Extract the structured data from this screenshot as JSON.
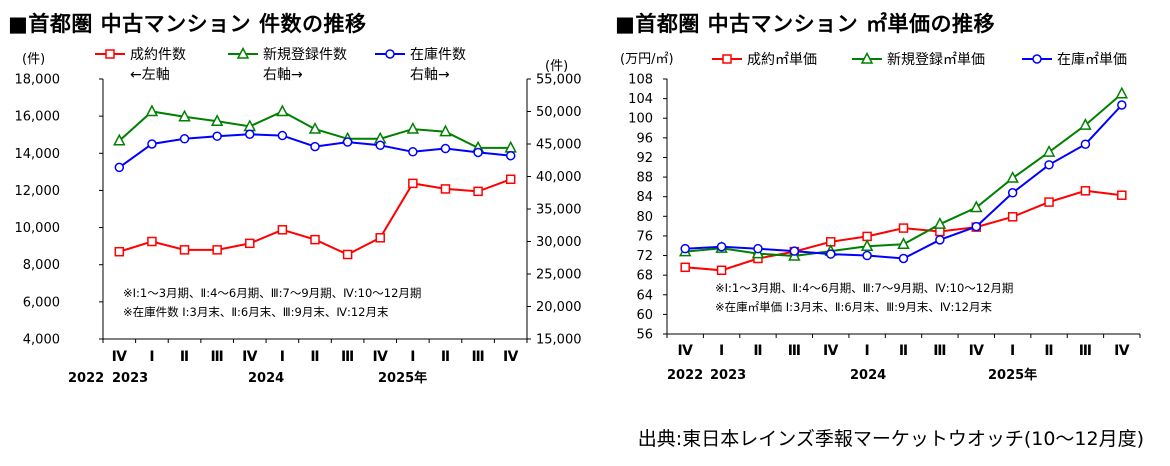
{
  "source": "出典:東日本レインズ季報マーケットウオッチ(10～12月度)",
  "chart_data": [
    {
      "type": "line",
      "title": "■首都圏 中古マンション 件数の推移",
      "left_unit": "(件)",
      "right_unit": "(件)",
      "categories": [
        "Ⅳ",
        "Ⅰ",
        "Ⅱ",
        "Ⅲ",
        "Ⅳ",
        "Ⅰ",
        "Ⅱ",
        "Ⅲ",
        "Ⅳ",
        "Ⅰ",
        "Ⅱ",
        "Ⅲ",
        "Ⅳ"
      ],
      "year_labels": [
        "2022",
        "2023",
        "2024",
        "2025年"
      ],
      "left_ylim": [
        4000,
        18000
      ],
      "left_ticks": [
        "4,000",
        "6,000",
        "8,000",
        "10,000",
        "12,000",
        "14,000",
        "16,000",
        "18,000"
      ],
      "right_ylim": [
        15000,
        55000
      ],
      "right_ticks": [
        "15,000",
        "20,000",
        "25,000",
        "30,000",
        "35,000",
        "40,000",
        "45,000",
        "50,000",
        "55,000"
      ],
      "grid": false,
      "series": [
        {
          "name": "成約件数",
          "legend_sub": "←左軸",
          "axis": "left",
          "color": "#ff0000",
          "marker": "square",
          "values": [
            8700,
            9250,
            8800,
            8800,
            9150,
            9880,
            9350,
            8550,
            9450,
            12380,
            12080,
            11950,
            12600
          ]
        },
        {
          "name": "新規登録件数",
          "legend_sub": "右軸→",
          "axis": "right",
          "color": "#008000",
          "marker": "triangle",
          "values": [
            45500,
            50000,
            49200,
            48500,
            47700,
            50000,
            47300,
            45800,
            45800,
            47300,
            46900,
            44400,
            44400
          ]
        },
        {
          "name": "在庫件数",
          "legend_sub": "右軸→",
          "axis": "right",
          "color": "#0000ff",
          "marker": "circle",
          "values": [
            41400,
            45000,
            45800,
            46200,
            46500,
            46300,
            44600,
            45300,
            44800,
            43800,
            44300,
            43700,
            43200
          ]
        }
      ],
      "notes": [
        "※Ⅰ:1～3月期、Ⅱ:4～6月期、Ⅲ:7～9月期、Ⅳ:10～12月期",
        "※在庫件数 Ⅰ:3月末、Ⅱ:6月末、Ⅲ:9月末、Ⅳ:12月末"
      ]
    },
    {
      "type": "line",
      "title": "■首都圏 中古マンション ㎡単価の推移",
      "left_unit": "(万円/㎡)",
      "categories": [
        "Ⅳ",
        "Ⅰ",
        "Ⅱ",
        "Ⅲ",
        "Ⅳ",
        "Ⅰ",
        "Ⅱ",
        "Ⅲ",
        "Ⅳ",
        "Ⅰ",
        "Ⅱ",
        "Ⅲ",
        "Ⅳ"
      ],
      "year_labels": [
        "2022",
        "2023",
        "2024",
        "2025年"
      ],
      "left_ylim": [
        56,
        108
      ],
      "left_ticks": [
        "56",
        "60",
        "64",
        "68",
        "72",
        "76",
        "80",
        "84",
        "88",
        "92",
        "96",
        "100",
        "104",
        "108"
      ],
      "grid": false,
      "series": [
        {
          "name": "成約㎡単価",
          "axis": "left",
          "color": "#ff0000",
          "marker": "square",
          "values": [
            69.6,
            69.0,
            71.4,
            72.8,
            74.8,
            75.9,
            77.6,
            76.9,
            77.8,
            79.9,
            82.9,
            85.2,
            84.3
          ]
        },
        {
          "name": "新規登録㎡単価",
          "axis": "left",
          "color": "#008000",
          "marker": "triangle",
          "values": [
            72.8,
            73.5,
            72.4,
            71.9,
            72.9,
            73.9,
            74.3,
            78.4,
            81.8,
            87.8,
            93.1,
            98.6,
            105.0
          ]
        },
        {
          "name": "在庫㎡単価",
          "axis": "left",
          "color": "#0000ff",
          "marker": "circle",
          "values": [
            73.4,
            73.8,
            73.4,
            72.9,
            72.3,
            72.0,
            71.4,
            75.2,
            77.9,
            84.8,
            90.5,
            94.7,
            102.7
          ]
        }
      ],
      "notes": [
        "※Ⅰ:1～3月期、Ⅱ:4～6月期、Ⅲ:7～9月期、Ⅳ:10～12月期",
        "※在庫㎡単価 Ⅰ:3月末、Ⅱ:6月末、Ⅲ:9月末、Ⅳ:12月末"
      ]
    }
  ]
}
